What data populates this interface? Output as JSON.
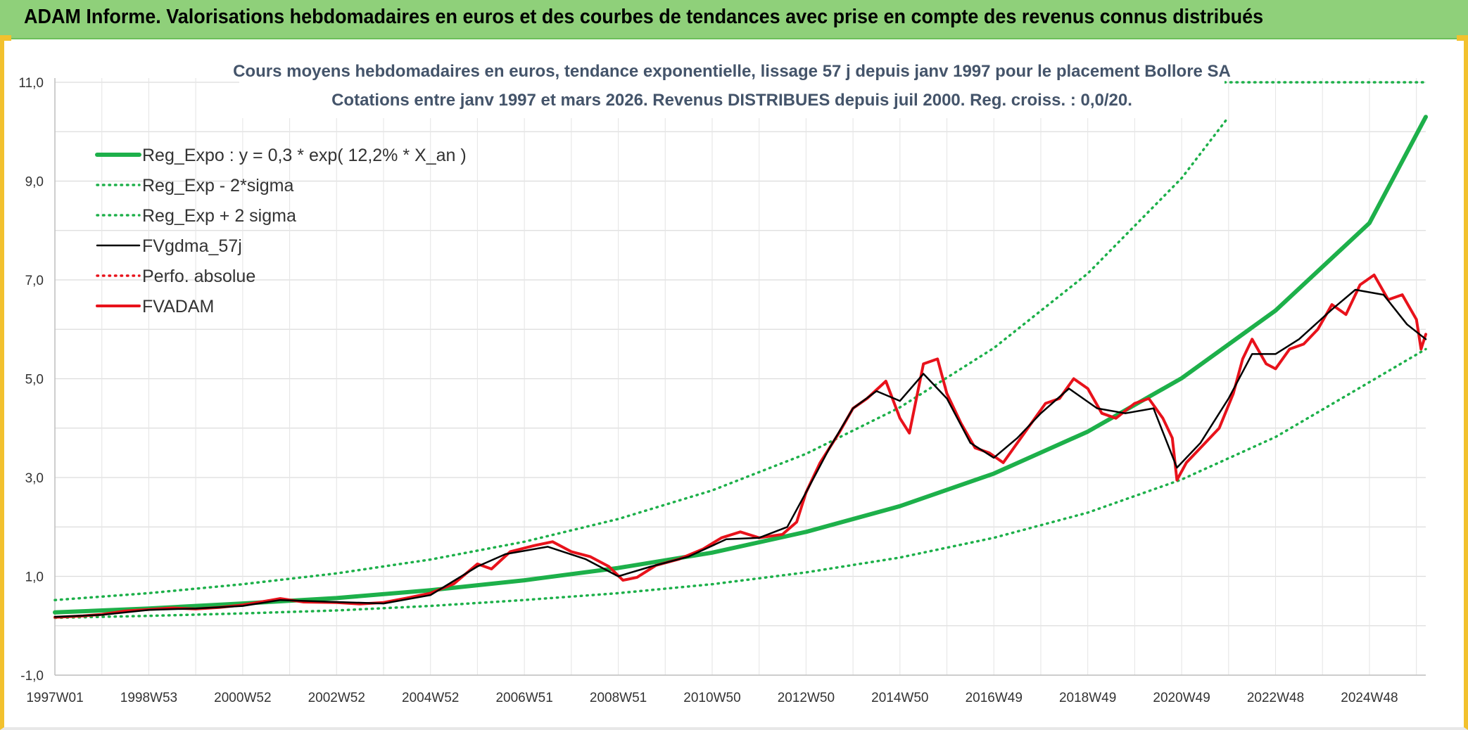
{
  "header": {
    "title": "ADAM Informe. Valorisations hebdomadaires en euros et des courbes de tendances avec prise en compte des revenus connus distribués"
  },
  "colors": {
    "banner": "#8fd07a",
    "reg_expo": "#1db04a",
    "fv_gdma": "#000000",
    "fvadam": "#e8121b",
    "perfo": "#e8121b",
    "grid": "#d9d9d9"
  },
  "chart_data": {
    "type": "line",
    "title_line1": "Cours moyens hebdomadaires en euros, tendance exponentielle, lissage 57 j depuis janv 1997 pour le placement Bollore SA",
    "title_line2": "Cotations entre janv 1997 et mars 2026. Revenus DISTRIBUES depuis juil 2000. Reg. croiss. : 0,0/20.",
    "xlabel": "",
    "ylabel": "",
    "xlim": [
      1997.0,
      2026.2
    ],
    "ylim": [
      -1,
      11
    ],
    "y_ticks": [
      {
        "value": -1,
        "label": "-1,0"
      },
      {
        "value": 1,
        "label": "1,0"
      },
      {
        "value": 3,
        "label": "3,0"
      },
      {
        "value": 5,
        "label": "5,0"
      },
      {
        "value": 7,
        "label": "7,0"
      },
      {
        "value": 9,
        "label": "9,0"
      },
      {
        "value": 11,
        "label": "11,0"
      }
    ],
    "x_ticks": [
      {
        "value": 1997.0,
        "label": "1997W01"
      },
      {
        "value": 1999.0,
        "label": "1998W53"
      },
      {
        "value": 2001.0,
        "label": "2000W52"
      },
      {
        "value": 2003.0,
        "label": "2002W52"
      },
      {
        "value": 2005.0,
        "label": "2004W52"
      },
      {
        "value": 2007.0,
        "label": "2006W51"
      },
      {
        "value": 2009.0,
        "label": "2008W51"
      },
      {
        "value": 2011.0,
        "label": "2010W50"
      },
      {
        "value": 2013.0,
        "label": "2012W50"
      },
      {
        "value": 2015.0,
        "label": "2014W50"
      },
      {
        "value": 2017.0,
        "label": "2016W49"
      },
      {
        "value": 2019.0,
        "label": "2018W49"
      },
      {
        "value": 2021.0,
        "label": "2020W49"
      },
      {
        "value": 2023.0,
        "label": "2022W48"
      },
      {
        "value": 2025.0,
        "label": "2024W48"
      }
    ],
    "legend_position": "top-left",
    "series": [
      {
        "name": "Reg_Expo : y = 0,3 * exp( 12,2% *  X_an )",
        "style": "solid-thick",
        "color": "#1db04a",
        "points": [
          [
            1997.0,
            0.27
          ],
          [
            1999.0,
            0.35
          ],
          [
            2001.0,
            0.45
          ],
          [
            2003.0,
            0.56
          ],
          [
            2005.0,
            0.72
          ],
          [
            2007.0,
            0.92
          ],
          [
            2009.0,
            1.17
          ],
          [
            2011.0,
            1.48
          ],
          [
            2013.0,
            1.9
          ],
          [
            2015.0,
            2.42
          ],
          [
            2017.0,
            3.08
          ],
          [
            2019.0,
            3.93
          ],
          [
            2021.0,
            5.01
          ],
          [
            2023.0,
            6.38
          ],
          [
            2025.0,
            8.15
          ],
          [
            2026.2,
            10.3
          ]
        ]
      },
      {
        "name": "Reg_Exp - 2*sigma",
        "style": "dotted",
        "color": "#1db04a",
        "points": [
          [
            1997.0,
            0.16
          ],
          [
            1999.0,
            0.2
          ],
          [
            2001.0,
            0.25
          ],
          [
            2003.0,
            0.31
          ],
          [
            2005.0,
            0.4
          ],
          [
            2007.0,
            0.52
          ],
          [
            2009.0,
            0.66
          ],
          [
            2011.0,
            0.84
          ],
          [
            2013.0,
            1.08
          ],
          [
            2015.0,
            1.38
          ],
          [
            2017.0,
            1.78
          ],
          [
            2019.0,
            2.29
          ],
          [
            2021.0,
            2.96
          ],
          [
            2023.0,
            3.82
          ],
          [
            2025.0,
            4.93
          ],
          [
            2026.2,
            5.6
          ]
        ]
      },
      {
        "name": "Reg_Exp + 2 sigma",
        "style": "dotted",
        "color": "#1db04a",
        "points": [
          [
            1997.0,
            0.52
          ],
          [
            1999.0,
            0.66
          ],
          [
            2001.0,
            0.84
          ],
          [
            2003.0,
            1.06
          ],
          [
            2005.0,
            1.34
          ],
          [
            2007.0,
            1.7
          ],
          [
            2009.0,
            2.16
          ],
          [
            2011.0,
            2.74
          ],
          [
            2013.0,
            3.48
          ],
          [
            2015.0,
            4.42
          ],
          [
            2017.0,
            5.62
          ],
          [
            2019.0,
            7.13
          ],
          [
            2021.0,
            9.06
          ],
          [
            2022.0,
            10.3
          ]
        ]
      },
      {
        "name": "FVgdma_57j",
        "style": "solid-thin",
        "color": "#000000",
        "points": [
          [
            1997.0,
            0.18
          ],
          [
            1998.0,
            0.22
          ],
          [
            1999.0,
            0.32
          ],
          [
            2000.0,
            0.35
          ],
          [
            2001.0,
            0.4
          ],
          [
            2001.8,
            0.52
          ],
          [
            2003.0,
            0.48
          ],
          [
            2004.0,
            0.45
          ],
          [
            2005.0,
            0.62
          ],
          [
            2006.0,
            1.2
          ],
          [
            2006.6,
            1.45
          ],
          [
            2007.5,
            1.6
          ],
          [
            2008.3,
            1.35
          ],
          [
            2009.0,
            1.0
          ],
          [
            2009.7,
            1.2
          ],
          [
            2010.5,
            1.4
          ],
          [
            2011.3,
            1.75
          ],
          [
            2012.0,
            1.78
          ],
          [
            2012.6,
            2.0
          ],
          [
            2013.0,
            2.7
          ],
          [
            2013.5,
            3.6
          ],
          [
            2014.0,
            4.4
          ],
          [
            2014.5,
            4.75
          ],
          [
            2015.0,
            4.55
          ],
          [
            2015.5,
            5.1
          ],
          [
            2016.0,
            4.6
          ],
          [
            2016.5,
            3.7
          ],
          [
            2017.0,
            3.4
          ],
          [
            2017.5,
            3.8
          ],
          [
            2018.0,
            4.3
          ],
          [
            2018.6,
            4.8
          ],
          [
            2019.2,
            4.4
          ],
          [
            2019.8,
            4.3
          ],
          [
            2020.4,
            4.4
          ],
          [
            2020.9,
            3.2
          ],
          [
            2021.4,
            3.7
          ],
          [
            2022.0,
            4.6
          ],
          [
            2022.5,
            5.5
          ],
          [
            2023.0,
            5.5
          ],
          [
            2023.5,
            5.8
          ],
          [
            2024.2,
            6.4
          ],
          [
            2024.7,
            6.8
          ],
          [
            2025.3,
            6.7
          ],
          [
            2025.8,
            6.1
          ],
          [
            2026.2,
            5.8
          ]
        ]
      },
      {
        "name": "Perfo. absolue",
        "style": "dotted",
        "color": "#e8121b",
        "points": []
      },
      {
        "name": "FVADAM",
        "style": "solid-thick",
        "color": "#e8121b",
        "points": [
          [
            1997.0,
            0.17
          ],
          [
            1997.6,
            0.2
          ],
          [
            1998.0,
            0.23
          ],
          [
            1998.5,
            0.3
          ],
          [
            1999.0,
            0.33
          ],
          [
            1999.5,
            0.36
          ],
          [
            2000.0,
            0.34
          ],
          [
            2000.5,
            0.37
          ],
          [
            2001.0,
            0.42
          ],
          [
            2001.5,
            0.5
          ],
          [
            2001.8,
            0.55
          ],
          [
            2002.3,
            0.48
          ],
          [
            2003.0,
            0.47
          ],
          [
            2003.5,
            0.44
          ],
          [
            2004.0,
            0.47
          ],
          [
            2004.5,
            0.56
          ],
          [
            2005.0,
            0.66
          ],
          [
            2005.5,
            0.85
          ],
          [
            2006.0,
            1.25
          ],
          [
            2006.3,
            1.15
          ],
          [
            2006.7,
            1.5
          ],
          [
            2007.2,
            1.62
          ],
          [
            2007.6,
            1.7
          ],
          [
            2008.0,
            1.5
          ],
          [
            2008.4,
            1.4
          ],
          [
            2008.8,
            1.2
          ],
          [
            2009.1,
            0.92
          ],
          [
            2009.4,
            0.98
          ],
          [
            2009.8,
            1.22
          ],
          [
            2010.3,
            1.35
          ],
          [
            2010.8,
            1.55
          ],
          [
            2011.2,
            1.78
          ],
          [
            2011.6,
            1.9
          ],
          [
            2012.0,
            1.78
          ],
          [
            2012.5,
            1.85
          ],
          [
            2012.8,
            2.1
          ],
          [
            2013.0,
            2.7
          ],
          [
            2013.3,
            3.3
          ],
          [
            2013.7,
            3.9
          ],
          [
            2014.0,
            4.4
          ],
          [
            2014.3,
            4.6
          ],
          [
            2014.7,
            4.95
          ],
          [
            2015.0,
            4.2
          ],
          [
            2015.2,
            3.9
          ],
          [
            2015.5,
            5.3
          ],
          [
            2015.8,
            5.4
          ],
          [
            2016.0,
            4.7
          ],
          [
            2016.3,
            4.1
          ],
          [
            2016.6,
            3.6
          ],
          [
            2016.9,
            3.5
          ],
          [
            2017.2,
            3.3
          ],
          [
            2017.5,
            3.7
          ],
          [
            2017.8,
            4.1
          ],
          [
            2018.1,
            4.5
          ],
          [
            2018.4,
            4.6
          ],
          [
            2018.7,
            5.0
          ],
          [
            2019.0,
            4.8
          ],
          [
            2019.3,
            4.3
          ],
          [
            2019.6,
            4.2
          ],
          [
            2020.0,
            4.5
          ],
          [
            2020.3,
            4.6
          ],
          [
            2020.6,
            4.2
          ],
          [
            2020.8,
            3.8
          ],
          [
            2020.9,
            2.95
          ],
          [
            2021.1,
            3.3
          ],
          [
            2021.4,
            3.6
          ],
          [
            2021.8,
            4.0
          ],
          [
            2022.1,
            4.7
          ],
          [
            2022.3,
            5.4
          ],
          [
            2022.5,
            5.8
          ],
          [
            2022.8,
            5.3
          ],
          [
            2023.0,
            5.2
          ],
          [
            2023.3,
            5.6
          ],
          [
            2023.6,
            5.7
          ],
          [
            2023.9,
            6.0
          ],
          [
            2024.2,
            6.5
          ],
          [
            2024.5,
            6.3
          ],
          [
            2024.8,
            6.9
          ],
          [
            2025.1,
            7.1
          ],
          [
            2025.4,
            6.6
          ],
          [
            2025.7,
            6.7
          ],
          [
            2026.0,
            6.2
          ],
          [
            2026.1,
            5.6
          ],
          [
            2026.2,
            5.9
          ]
        ]
      }
    ]
  }
}
